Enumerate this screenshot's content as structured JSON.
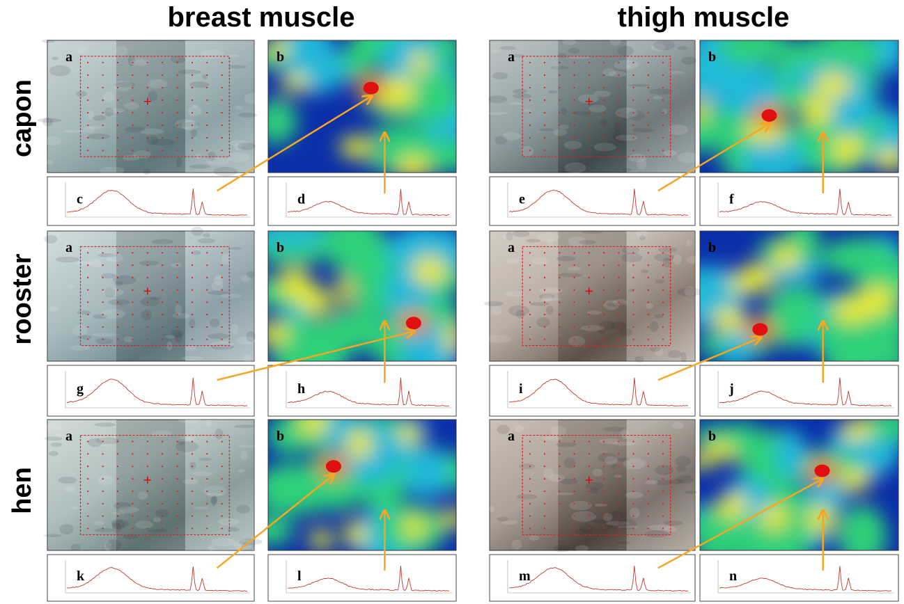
{
  "columns": [
    {
      "title": "breast muscle"
    },
    {
      "title": "thigh muscle"
    }
  ],
  "rows": [
    {
      "label": "capon",
      "panels": [
        [
          "a",
          "b",
          "c",
          "d"
        ],
        [
          "a",
          "b",
          "e",
          "f"
        ]
      ]
    },
    {
      "label": "rooster",
      "panels": [
        [
          "a",
          "b",
          "g",
          "h"
        ],
        [
          "a",
          "b",
          "i",
          "j"
        ]
      ]
    },
    {
      "label": "hen",
      "panels": [
        [
          "a",
          "b",
          "k",
          "l"
        ],
        [
          "a",
          "b",
          "m",
          "n"
        ]
      ]
    }
  ]
}
